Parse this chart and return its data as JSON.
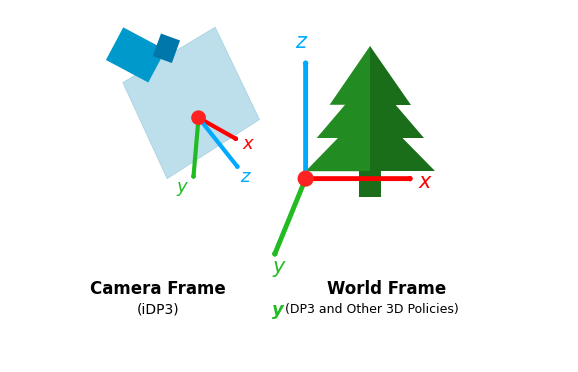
{
  "bg_color": "#ffffff",
  "camera_frame_label": "Camera Frame",
  "camera_frame_sublabel": "(iDP3)",
  "world_frame_label": "World Frame",
  "world_frame_sublabel_y": "y",
  "world_frame_sublabel_rest": "(DP3 and Other 3D Policies)",
  "color_x": "#ff0000",
  "color_y": "#22bb22",
  "color_z": "#00aaff",
  "color_red_dot": "#ff2222",
  "color_plane": "#add8e6",
  "color_plane_edge": "#90c8d8",
  "color_cam_body": "#0099cc",
  "color_cam_lens": "#0077aa",
  "color_tree": "#228B22",
  "color_tree_shadow": "#1a6e1a",
  "figsize": [
    5.78,
    3.72
  ],
  "dpi": 100
}
